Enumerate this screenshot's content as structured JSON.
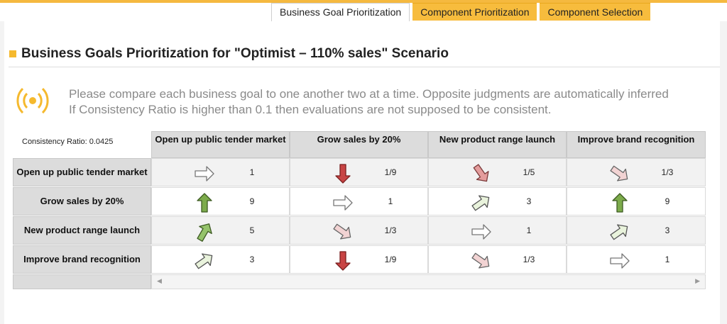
{
  "tabs": [
    {
      "label": "Business Goal Prioritization",
      "active": true
    },
    {
      "label": "Component Prioritization",
      "active": false
    },
    {
      "label": "Component Selection",
      "active": false
    }
  ],
  "page_title": "Business Goals Prioritization for \"Optimist – 110% sales\" Scenario",
  "info_lines": [
    "Please compare each business goal to one another two at a time. Opposite judgments are automatically inferred",
    "If Consistency Ratio is higher than 0.1 then evaluations are not supposed to be consistent."
  ],
  "consistency_ratio": "Consistency Ratio: 0.0425",
  "columns": [
    "Open up public tender market",
    "Grow sales by 20%",
    "New product range launch",
    "Improve brand recognition"
  ],
  "rows": [
    {
      "label": "Open up public tender market",
      "cells": [
        {
          "value": "1",
          "arrow": "right-outline"
        },
        {
          "value": "1/9",
          "arrow": "down-red"
        },
        {
          "value": "1/5",
          "arrow": "down-right-pink"
        },
        {
          "value": "1/3",
          "arrow": "down-right-lightpink"
        }
      ]
    },
    {
      "label": "Grow sales by 20%",
      "cells": [
        {
          "value": "9",
          "arrow": "up-green"
        },
        {
          "value": "1",
          "arrow": "right-outline"
        },
        {
          "value": "3",
          "arrow": "up-right-lightgreen"
        },
        {
          "value": "9",
          "arrow": "up-green"
        }
      ]
    },
    {
      "label": "New product range launch",
      "cells": [
        {
          "value": "5",
          "arrow": "up-right-green"
        },
        {
          "value": "1/3",
          "arrow": "down-right-lightpink"
        },
        {
          "value": "1",
          "arrow": "right-outline"
        },
        {
          "value": "3",
          "arrow": "up-right-lightgreen"
        }
      ]
    },
    {
      "label": "Improve brand recognition",
      "cells": [
        {
          "value": "3",
          "arrow": "up-right-lightgreen"
        },
        {
          "value": "1/9",
          "arrow": "down-red"
        },
        {
          "value": "1/3",
          "arrow": "down-right-lightpink"
        },
        {
          "value": "1",
          "arrow": "right-outline"
        }
      ]
    }
  ],
  "colors": {
    "accent": "#f5b93f",
    "strong_positive": "#7cab4b",
    "mild_positive": "#e9f3dc",
    "strong_negative": "#c84444",
    "mild_negative": "#f2d3d3"
  },
  "icons": {
    "info": "broadcast-info-icon",
    "scroll_left": "scroll-left-icon",
    "scroll_right": "scroll-right-icon"
  }
}
